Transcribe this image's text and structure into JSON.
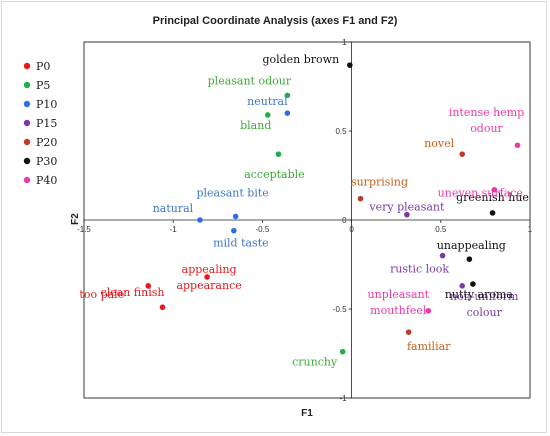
{
  "chart_data": {
    "type": "scatter",
    "title": "Principal Coordinate Analysis (axes F1 and F2)",
    "xlabel": "F1",
    "ylabel": "F2",
    "xlim": [
      -1.5,
      1
    ],
    "ylim": [
      -1,
      1
    ],
    "xticks": [
      {
        "v": -1.5,
        "label": "-1.5"
      },
      {
        "v": -1,
        "label": "-1"
      },
      {
        "v": -0.5,
        "label": "-0.5"
      },
      {
        "v": 0,
        "label": "0"
      },
      {
        "v": 0.5,
        "label": "0.5"
      },
      {
        "v": 1,
        "label": "1"
      }
    ],
    "yticks": [
      {
        "v": 1,
        "label": "1"
      },
      {
        "v": 0.5,
        "label": "0.5"
      },
      {
        "v": 0,
        "label": "0"
      },
      {
        "v": -0.5,
        "label": "-0.5"
      },
      {
        "v": -1,
        "label": "-1"
      }
    ],
    "grid": false,
    "legend_position": "left",
    "series": [
      {
        "name": "P0",
        "color": "#e8191c",
        "points": [
          {
            "label": "too pale",
            "x": -1.14,
            "y": -0.37
          },
          {
            "label": "clean finish",
            "x": -1.06,
            "y": -0.49
          },
          {
            "label": "appealing appearance",
            "x": -0.81,
            "y": -0.32
          }
        ]
      },
      {
        "name": "P5",
        "color": "#1fae4b",
        "points": [
          {
            "label": "pleasant odour",
            "x": -0.36,
            "y": 0.7
          },
          {
            "label": "bland",
            "x": -0.47,
            "y": 0.59
          },
          {
            "label": "acceptable",
            "x": -0.41,
            "y": 0.37
          },
          {
            "label": "crunchy",
            "x": -0.05,
            "y": -0.74
          }
        ]
      },
      {
        "name": "P10",
        "color": "#2e6fdf",
        "points": [
          {
            "label": "neutral",
            "x": -0.36,
            "y": 0.6
          },
          {
            "label": "pleasant bite",
            "x": -0.65,
            "y": 0.02
          },
          {
            "label": "natural",
            "x": -0.85,
            "y": 0.0
          },
          {
            "label": "mild taste",
            "x": -0.66,
            "y": -0.06
          }
        ]
      },
      {
        "name": "P15",
        "color": "#7a3aa8",
        "points": [
          {
            "label": "very pleasant",
            "x": 0.31,
            "y": 0.03
          },
          {
            "label": "rustic look",
            "x": 0.51,
            "y": -0.2
          },
          {
            "label": "non-uniform colour",
            "x": 0.62,
            "y": -0.37
          }
        ]
      },
      {
        "name": "P20",
        "color": "#c0392b",
        "points": [
          {
            "label": "novel",
            "x": 0.62,
            "y": 0.37
          },
          {
            "label": "surprising",
            "x": 0.05,
            "y": 0.12
          },
          {
            "label": "familiar",
            "x": 0.32,
            "y": -0.63
          }
        ]
      },
      {
        "name": "P30",
        "color": "#111111",
        "points": [
          {
            "label": "golden brown",
            "x": -0.01,
            "y": 0.87
          },
          {
            "label": "greenish hue",
            "x": 0.79,
            "y": 0.04
          },
          {
            "label": "unappealing",
            "x": 0.66,
            "y": -0.22
          },
          {
            "label": "nutty aroma",
            "x": 0.68,
            "y": -0.36
          }
        ]
      },
      {
        "name": "P40",
        "color": "#ec3aa5",
        "points": [
          {
            "label": "intense hemp odour",
            "x": 0.93,
            "y": 0.42
          },
          {
            "label": "uneven surface",
            "x": 0.8,
            "y": 0.17
          },
          {
            "label": "unpleasant mouthfeel",
            "x": 0.43,
            "y": -0.51
          }
        ]
      }
    ],
    "text_colors": {
      "P0": "#e8191c",
      "P5": "#3aaa35",
      "P10": "#3b78c9",
      "P15": "#7a3aa8",
      "P20": "#c4611a",
      "P30": "#111111",
      "P40": "#ec3aa5"
    }
  }
}
